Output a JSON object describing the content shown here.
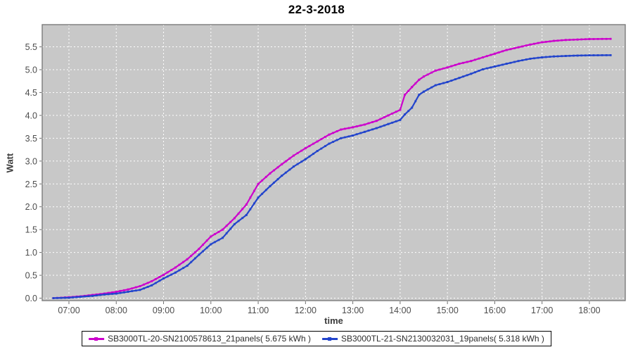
{
  "title": "22-3-2018",
  "chart_data": {
    "type": "line",
    "title": "22-3-2018",
    "xlabel": "time",
    "ylabel": "Watt",
    "x_ticks": [
      "07:00",
      "08:00",
      "09:00",
      "10:00",
      "11:00",
      "12:00",
      "13:00",
      "14:00",
      "15:00",
      "16:00",
      "17:00",
      "18:00"
    ],
    "y_ticks": [
      "0.0",
      "0.5",
      "1.0",
      "1.5",
      "2.0",
      "2.5",
      "3.0",
      "3.5",
      "4.0",
      "4.5",
      "5.0",
      "5.5"
    ],
    "x_tick_hours": [
      7,
      8,
      9,
      10,
      11,
      12,
      13,
      14,
      15,
      16,
      17,
      18
    ],
    "x_range_hours": [
      6.43,
      18.77
    ],
    "y_range": [
      -0.05,
      6.0
    ],
    "grid": true,
    "legend_position": "bottom",
    "plot_bg": "#C8C8C8",
    "grid_color": "#FFFFFF",
    "plot_border": "#7A7A7A",
    "tick_color": "#6E6E6E",
    "tick_label_color": "#4D4D4D",
    "x_hours": [
      6.67,
      7.0,
      7.25,
      7.5,
      7.75,
      8.0,
      8.25,
      8.5,
      8.75,
      9.0,
      9.25,
      9.5,
      9.75,
      10.0,
      10.25,
      10.5,
      10.75,
      11.0,
      11.25,
      11.5,
      11.75,
      12.0,
      12.25,
      12.5,
      12.75,
      13.0,
      13.25,
      13.5,
      13.75,
      14.0,
      14.1,
      14.25,
      14.4,
      14.5,
      14.75,
      15.0,
      15.25,
      15.5,
      15.75,
      16.0,
      16.25,
      16.5,
      16.75,
      17.0,
      17.25,
      17.5,
      17.75,
      18.0,
      18.45
    ],
    "series": [
      {
        "name": "SB3000TL-20-SN2100578613_21panels( 5.675 kWh )",
        "color": "#CC00CC",
        "final_kwh": 5.675,
        "y": [
          0.0,
          0.02,
          0.04,
          0.07,
          0.1,
          0.14,
          0.19,
          0.26,
          0.37,
          0.51,
          0.67,
          0.85,
          1.08,
          1.35,
          1.5,
          1.75,
          2.05,
          2.5,
          2.73,
          2.93,
          3.12,
          3.28,
          3.43,
          3.58,
          3.69,
          3.74,
          3.8,
          3.88,
          4.0,
          4.12,
          4.45,
          4.62,
          4.78,
          4.85,
          4.98,
          5.05,
          5.13,
          5.19,
          5.27,
          5.35,
          5.43,
          5.49,
          5.55,
          5.6,
          5.63,
          5.65,
          5.66,
          5.67,
          5.675
        ]
      },
      {
        "name": "SB3000TL-21-SN2130032031_19panels( 5.318 kWh )",
        "color": "#2244CC",
        "final_kwh": 5.318,
        "y": [
          0.0,
          0.01,
          0.03,
          0.05,
          0.08,
          0.1,
          0.14,
          0.18,
          0.28,
          0.43,
          0.56,
          0.71,
          0.95,
          1.18,
          1.32,
          1.62,
          1.82,
          2.2,
          2.45,
          2.68,
          2.88,
          3.04,
          3.22,
          3.38,
          3.5,
          3.56,
          3.64,
          3.72,
          3.81,
          3.9,
          4.02,
          4.17,
          4.45,
          4.52,
          4.66,
          4.73,
          4.82,
          4.91,
          5.01,
          5.07,
          5.13,
          5.19,
          5.24,
          5.27,
          5.29,
          5.3,
          5.31,
          5.315,
          5.318
        ]
      }
    ]
  }
}
